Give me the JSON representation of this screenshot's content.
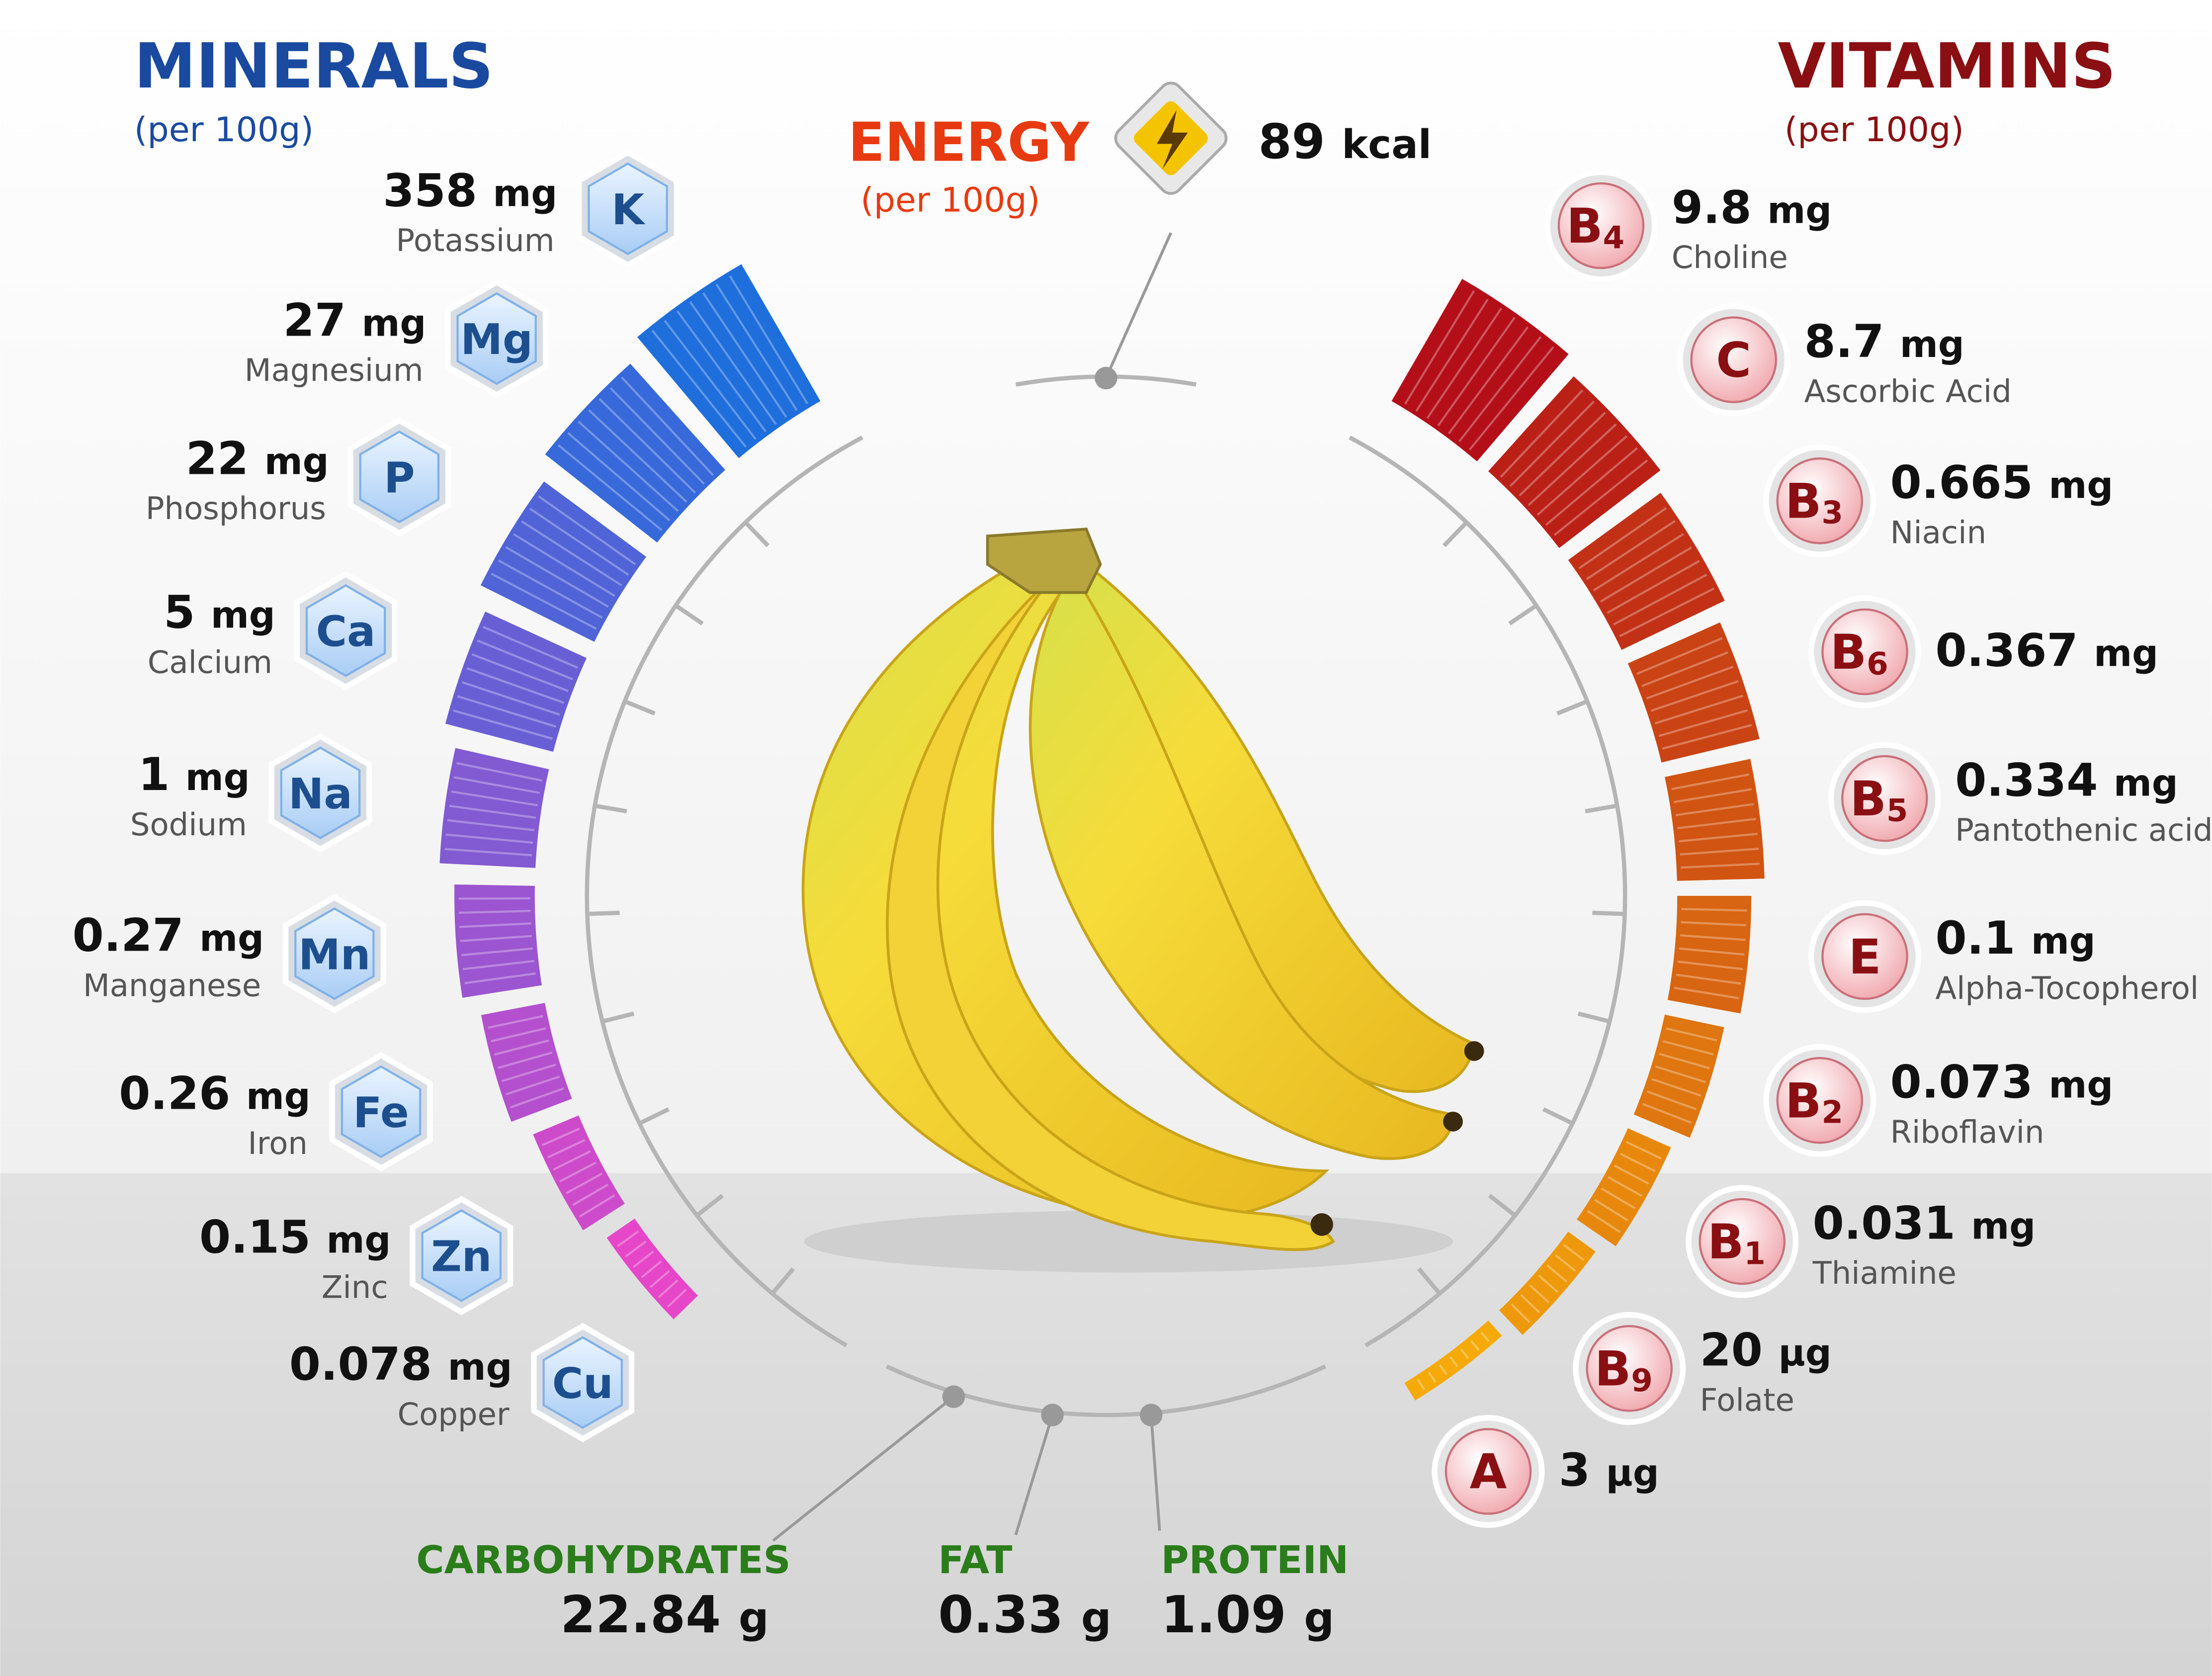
{
  "minerals": {
    "title": "MINERALS",
    "subtitle": "(per 100g)",
    "items": [
      {
        "symbol": "K",
        "value": "358",
        "unit": "mg",
        "name": "Potassium"
      },
      {
        "symbol": "Mg",
        "value": "27",
        "unit": "mg",
        "name": "Magnesium"
      },
      {
        "symbol": "P",
        "value": "22",
        "unit": "mg",
        "name": "Phosphorus"
      },
      {
        "symbol": "Ca",
        "value": "5",
        "unit": "mg",
        "name": "Calcium"
      },
      {
        "symbol": "Na",
        "value": "1",
        "unit": "mg",
        "name": "Sodium"
      },
      {
        "symbol": "Mn",
        "value": "0.27",
        "unit": "mg",
        "name": "Manganese"
      },
      {
        "symbol": "Fe",
        "value": "0.26",
        "unit": "mg",
        "name": "Iron"
      },
      {
        "symbol": "Zn",
        "value": "0.15",
        "unit": "mg",
        "name": "Zinc"
      },
      {
        "symbol": "Cu",
        "value": "0.078",
        "unit": "mg",
        "name": "Copper"
      }
    ]
  },
  "vitamins": {
    "title": "VITAMINS",
    "subtitle": "(per 100g)",
    "items": [
      {
        "symbol": "B",
        "index": "4",
        "value": "9.8",
        "unit": "mg",
        "name": "Choline"
      },
      {
        "symbol": "C",
        "value": "8.7",
        "unit": "mg",
        "name": "Ascorbic Acid"
      },
      {
        "symbol": "B",
        "index": "3",
        "value": "0.665",
        "unit": "mg",
        "name": "Niacin"
      },
      {
        "symbol": "B",
        "index": "6",
        "value": "0.367",
        "unit": "mg"
      },
      {
        "symbol": "B",
        "index": "5",
        "value": "0.334",
        "unit": "mg",
        "name": "Pantothenic acid"
      },
      {
        "symbol": "E",
        "value": "0.1",
        "unit": "mg",
        "name": "Alpha-Tocopherol"
      },
      {
        "symbol": "B",
        "index": "2",
        "value": "0.073",
        "unit": "mg",
        "name": "Riboflavin"
      },
      {
        "symbol": "B",
        "index": "1",
        "value": "0.031",
        "unit": "mg",
        "name": "Thiamine"
      },
      {
        "symbol": "B",
        "index": "9",
        "value": "20",
        "unit": "µg",
        "name": "Folate"
      },
      {
        "symbol": "A",
        "value": "3",
        "unit": "µg"
      }
    ]
  },
  "energy": {
    "title": "ENERGY",
    "subtitle": "(per 100g)",
    "value": "89",
    "unit": "kcal"
  },
  "macros": [
    {
      "label": "CARBOHYDRATES",
      "value": "22.84",
      "unit": "g"
    },
    {
      "label": "FAT",
      "value": "0.33",
      "unit": "g"
    },
    {
      "label": "PROTEIN",
      "value": "1.09",
      "unit": "g"
    }
  ]
}
